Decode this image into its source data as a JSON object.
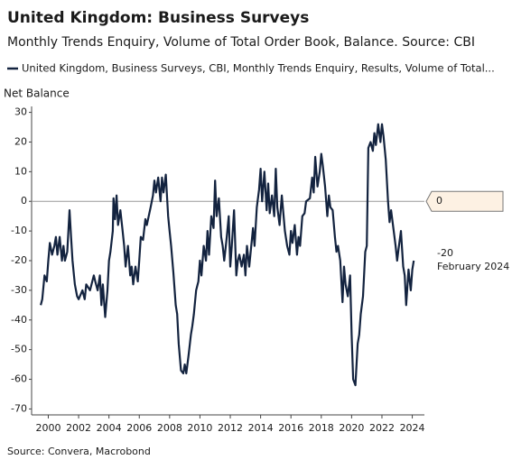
{
  "chart_data": {
    "type": "line",
    "title": "United Kingdom: Business Surveys",
    "subtitle": "Monthly Trends Enquiry, Volume of Total Order Book, Balance. Source: CBI",
    "y_label": "Net Balance",
    "source": "Source: Convera, Macrobond",
    "last_date_label": "February 2024",
    "reference_value": 0,
    "xlim": [
      1998.9,
      2024.8
    ],
    "ylim": [
      -72,
      32
    ],
    "xticks": [
      2000,
      2002,
      2004,
      2006,
      2008,
      2010,
      2012,
      2014,
      2016,
      2018,
      2020,
      2022,
      2024
    ],
    "yticks": [
      30,
      20,
      10,
      0,
      -10,
      -20,
      -30,
      -40,
      -50,
      -60,
      -70
    ],
    "series": [
      {
        "name": "United Kingdom, Business Surveys, CBI, Monthly Trends Enquiry, Results, Volume of Total...",
        "color": "#13233f",
        "x": [
          1999.5,
          1999.6,
          1999.75,
          1999.9,
          2000.0,
          2000.1,
          2000.25,
          2000.4,
          2000.5,
          2000.6,
          2000.75,
          2000.9,
          2001.0,
          2001.1,
          2001.25,
          2001.4,
          2001.5,
          2001.6,
          2001.75,
          2001.9,
          2002.0,
          2002.25,
          2002.4,
          2002.5,
          2002.75,
          2003.0,
          2003.1,
          2003.25,
          2003.4,
          2003.5,
          2003.6,
          2003.75,
          2003.9,
          2004.0,
          2004.1,
          2004.25,
          2004.3,
          2004.4,
          2004.5,
          2004.6,
          2004.75,
          2004.9,
          2005.0,
          2005.1,
          2005.25,
          2005.4,
          2005.5,
          2005.6,
          2005.75,
          2005.9,
          2006.0,
          2006.1,
          2006.25,
          2006.4,
          2006.5,
          2006.75,
          2006.9,
          2007.0,
          2007.1,
          2007.25,
          2007.4,
          2007.5,
          2007.6,
          2007.75,
          2007.9,
          2008.0,
          2008.1,
          2008.25,
          2008.4,
          2008.5,
          2008.6,
          2008.75,
          2008.9,
          2009.0,
          2009.1,
          2009.25,
          2009.4,
          2009.5,
          2009.6,
          2009.75,
          2009.9,
          2010.0,
          2010.1,
          2010.25,
          2010.4,
          2010.5,
          2010.6,
          2010.75,
          2010.9,
          2011.0,
          2011.1,
          2011.25,
          2011.4,
          2011.5,
          2011.6,
          2011.75,
          2011.9,
          2012.0,
          2012.1,
          2012.25,
          2012.4,
          2012.5,
          2012.6,
          2012.75,
          2012.9,
          2013.0,
          2013.1,
          2013.25,
          2013.5,
          2013.6,
          2013.75,
          2013.9,
          2014.0,
          2014.1,
          2014.25,
          2014.4,
          2014.5,
          2014.6,
          2014.75,
          2014.9,
          2015.0,
          2015.1,
          2015.25,
          2015.4,
          2015.5,
          2015.6,
          2015.75,
          2015.9,
          2016.0,
          2016.1,
          2016.25,
          2016.4,
          2016.5,
          2016.6,
          2016.75,
          2016.9,
          2017.0,
          2017.25,
          2017.4,
          2017.5,
          2017.6,
          2017.75,
          2017.9,
          2018.0,
          2018.1,
          2018.25,
          2018.4,
          2018.5,
          2018.6,
          2018.75,
          2018.9,
          2019.0,
          2019.1,
          2019.25,
          2019.4,
          2019.5,
          2019.6,
          2019.75,
          2019.9,
          2020.0,
          2020.1,
          2020.25,
          2020.4,
          2020.5,
          2020.6,
          2020.75,
          2020.9,
          2021.0,
          2021.1,
          2021.25,
          2021.4,
          2021.5,
          2021.6,
          2021.75,
          2021.9,
          2022.0,
          2022.1,
          2022.25,
          2022.4,
          2022.5,
          2022.6,
          2022.75,
          2022.9,
          2023.0,
          2023.1,
          2023.25,
          2023.4,
          2023.5,
          2023.6,
          2023.75,
          2023.9,
          2024.0,
          2024.1
        ],
        "values": [
          -35,
          -33,
          -25,
          -27,
          -20,
          -14,
          -18,
          -15,
          -12,
          -18,
          -12,
          -20,
          -15,
          -20,
          -17,
          -3,
          -12,
          -20,
          -28,
          -32,
          -33,
          -30,
          -33,
          -28,
          -30,
          -25,
          -27,
          -30,
          -25,
          -35,
          -28,
          -39,
          -30,
          -20,
          -17,
          -10,
          1,
          -6,
          2,
          -8,
          -3,
          -10,
          -15,
          -22,
          -15,
          -25,
          -22,
          -28,
          -22,
          -27,
          -20,
          -12,
          -13,
          -6,
          -8,
          -2,
          2,
          7,
          3,
          8,
          0,
          8,
          3,
          9,
          -5,
          -10,
          -15,
          -24,
          -35,
          -38,
          -48,
          -57,
          -58,
          -55,
          -58,
          -52,
          -45,
          -42,
          -38,
          -30,
          -27,
          -20,
          -25,
          -15,
          -20,
          -10,
          -18,
          -5,
          -9,
          7,
          -5,
          1,
          -12,
          -15,
          -20,
          -13,
          -5,
          -22,
          -15,
          -3,
          -25,
          -20,
          -18,
          -22,
          -18,
          -25,
          -15,
          -22,
          -9,
          -15,
          -2,
          4,
          11,
          0,
          10,
          -3,
          6,
          -4,
          2,
          -5,
          11,
          -2,
          -8,
          2,
          -4,
          -10,
          -15,
          -18,
          -10,
          -14,
          -8,
          -18,
          -12,
          -15,
          -5,
          -4,
          0,
          1,
          8,
          3,
          15,
          5,
          10,
          16,
          12,
          5,
          -5,
          2,
          -2,
          -3,
          -12,
          -17,
          -15,
          -20,
          -34,
          -22,
          -28,
          -32,
          -25,
          -45,
          -60,
          -62,
          -48,
          -45,
          -38,
          -32,
          -17,
          -15,
          18,
          20,
          17,
          23,
          19,
          26,
          20,
          26,
          22,
          14,
          0,
          -7,
          -3,
          -9,
          -15,
          -20,
          -16,
          -10,
          -22,
          -25,
          -35,
          -23,
          -30,
          -23,
          -20
        ]
      }
    ]
  }
}
